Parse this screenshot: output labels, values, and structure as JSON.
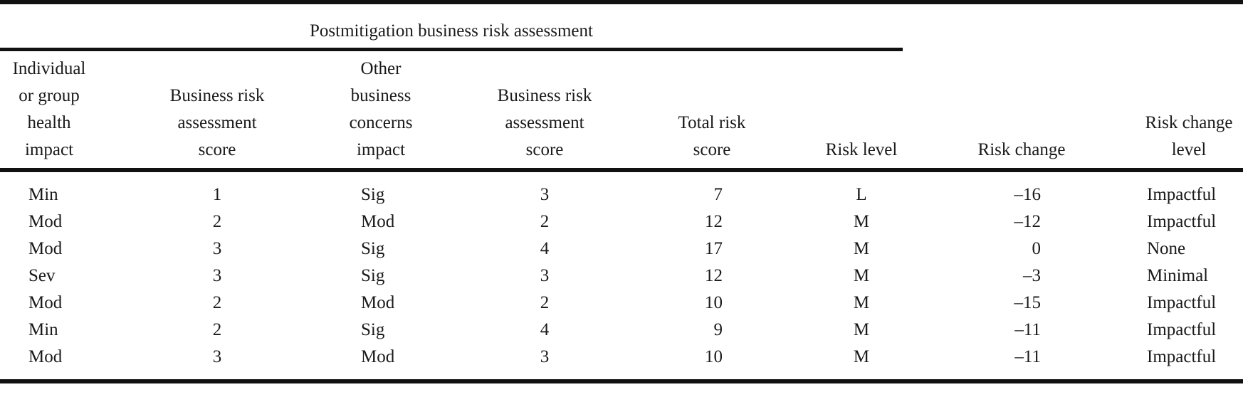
{
  "table": {
    "group_header": "Postmitigation business risk assessment",
    "columns": [
      "Individual\nor group\nhealth\nimpact",
      "Business risk\nassessment\nscore",
      "Other\nbusiness\nconcerns\nimpact",
      "Business risk\nassessment\nscore",
      "Total risk\nscore",
      "Risk level",
      "Risk change",
      "Risk change\nlevel"
    ],
    "rows": [
      [
        "Min",
        "1",
        "Sig",
        "3",
        "7",
        "L",
        "–16",
        "Impactful"
      ],
      [
        "Mod",
        "2",
        "Mod",
        "2",
        "12",
        "M",
        "–12",
        "Impactful"
      ],
      [
        "Mod",
        "3",
        "Sig",
        "4",
        "17",
        "M",
        "0",
        "None"
      ],
      [
        "Sev",
        "3",
        "Sig",
        "3",
        "12",
        "M",
        "–3",
        "Minimal"
      ],
      [
        "Mod",
        "2",
        "Mod",
        "2",
        "10",
        "M",
        "–15",
        "Impactful"
      ],
      [
        "Min",
        "2",
        "Sig",
        "4",
        "9",
        "M",
        "–11",
        "Impactful"
      ],
      [
        "Mod",
        "3",
        "Mod",
        "3",
        "10",
        "M",
        "–11",
        "Impactful"
      ]
    ]
  }
}
